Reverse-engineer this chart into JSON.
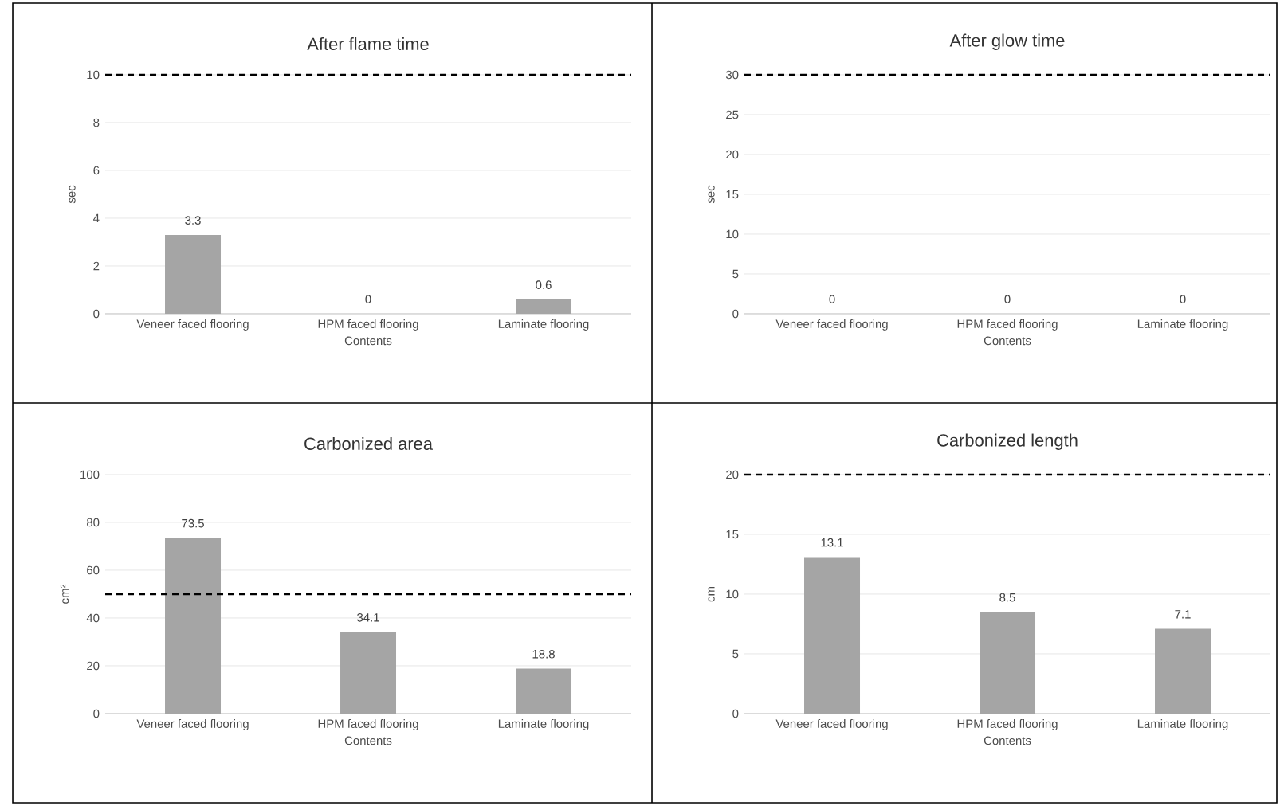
{
  "chart_data": [
    {
      "type": "bar",
      "title": "After flame time",
      "xlabel": "Contents",
      "ylabel": "sec",
      "categories": [
        "Veneer faced flooring",
        "HPM faced flooring",
        "Laminate flooring"
      ],
      "values": [
        3.3,
        0,
        0.6
      ],
      "color": "#a5a5a5",
      "ylim": [
        0,
        10
      ],
      "yticks": [
        0,
        2,
        4,
        6,
        8,
        10
      ],
      "grid": "y",
      "data_labels": true,
      "ref_lines": [
        {
          "axis": "y",
          "value": 10,
          "color": "#000000",
          "line_style": "dashed"
        }
      ]
    },
    {
      "type": "bar",
      "title": "After glow time",
      "xlabel": "Contents",
      "ylabel": "sec",
      "categories": [
        "Veneer faced flooring",
        "HPM faced flooring",
        "Laminate flooring"
      ],
      "values": [
        0,
        0,
        0
      ],
      "color": "#a5a5a5",
      "ylim": [
        0,
        30
      ],
      "yticks": [
        0,
        5,
        10,
        15,
        20,
        25,
        30
      ],
      "grid": "y",
      "data_labels": true,
      "ref_lines": [
        {
          "axis": "y",
          "value": 30,
          "color": "#000000",
          "line_style": "dashed"
        }
      ]
    },
    {
      "type": "bar",
      "title": "Carbonized area",
      "xlabel": "Contents",
      "ylabel": "cm²",
      "categories": [
        "Veneer faced flooring",
        "HPM faced flooring",
        "Laminate flooring"
      ],
      "values": [
        73.5,
        34.1,
        18.8
      ],
      "color": "#a5a5a5",
      "ylim": [
        0,
        100
      ],
      "yticks": [
        0,
        20,
        40,
        60,
        80,
        100
      ],
      "grid": "y",
      "data_labels": true,
      "ref_lines": [
        {
          "axis": "y",
          "value": 50,
          "color": "#000000",
          "line_style": "dashed"
        }
      ]
    },
    {
      "type": "bar",
      "title": "Carbonized length",
      "xlabel": "Contents",
      "ylabel": "cm",
      "categories": [
        "Veneer faced flooring",
        "HPM faced flooring",
        "Laminate flooring"
      ],
      "values": [
        13.1,
        8.5,
        7.1
      ],
      "color": "#a5a5a5",
      "ylim": [
        0,
        20
      ],
      "yticks": [
        0,
        5,
        10,
        15,
        20
      ],
      "grid": "y",
      "data_labels": true,
      "ref_lines": [
        {
          "axis": "y",
          "value": 20,
          "color": "#000000",
          "line_style": "dashed"
        }
      ]
    }
  ]
}
